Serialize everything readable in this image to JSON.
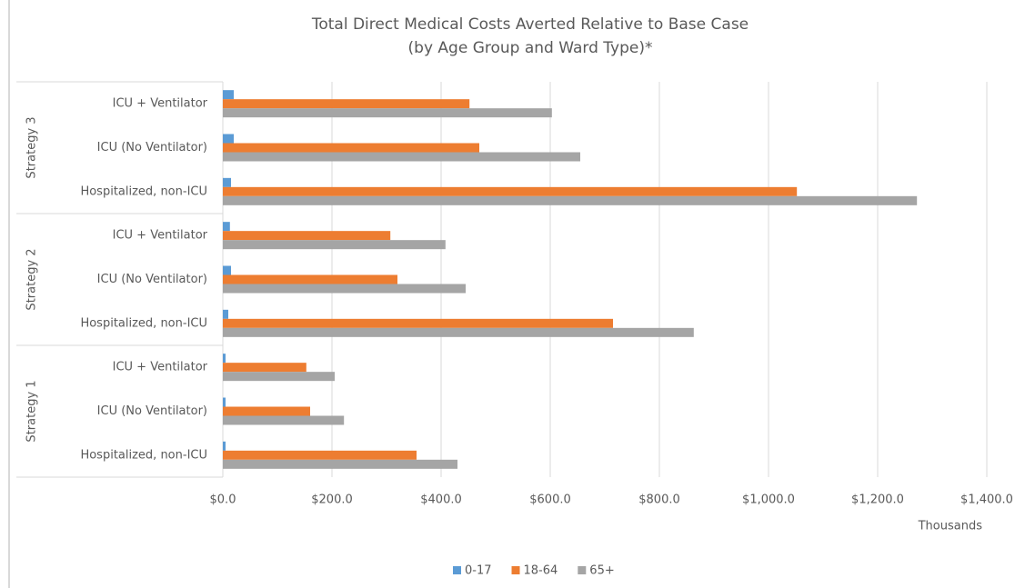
{
  "chart_data": {
    "type": "bar",
    "orientation": "horizontal",
    "title": [
      "Total Direct Medical Costs Averted Relative to Base Case",
      "(by Age Group and Ward Type)*"
    ],
    "x_label": "Thousands",
    "groups": [
      {
        "name": "Strategy 3",
        "categories": [
          "ICU + Ventilator",
          "ICU (No Ventilator)",
          "Hospitalized, non-ICU"
        ]
      },
      {
        "name": "Strategy 2",
        "categories": [
          "ICU + Ventilator",
          "ICU (No Ventilator)",
          "Hospitalized, non-ICU"
        ]
      },
      {
        "name": "Strategy 1",
        "categories": [
          "ICU + Ventilator",
          "ICU (No Ventilator)",
          "Hospitalized, non-ICU"
        ]
      }
    ],
    "series": [
      {
        "name": "0-17",
        "color": "#5b9bd5",
        "values": [
          20,
          20,
          15,
          13,
          15,
          10,
          5,
          5,
          5
        ]
      },
      {
        "name": "18-64",
        "color": "#ed7d31",
        "values": [
          452,
          470,
          1052,
          307,
          320,
          715,
          153,
          160,
          355
        ]
      },
      {
        "name": "65+",
        "color": "#a5a5a5",
        "values": [
          603,
          655,
          1272,
          408,
          445,
          863,
          205,
          222,
          430
        ]
      }
    ],
    "xlim": [
      0,
      1400
    ],
    "xticks": [
      {
        "value": 0,
        "label": "$0.0"
      },
      {
        "value": 200,
        "label": "$200.0"
      },
      {
        "value": 400,
        "label": "$400.0"
      },
      {
        "value": 600,
        "label": "$600.0"
      },
      {
        "value": 800,
        "label": "$800.0"
      },
      {
        "value": 1000,
        "label": "$1,000.0"
      },
      {
        "value": 1200,
        "label": "$1,200.0"
      },
      {
        "value": 1400,
        "label": "$1,400.0"
      }
    ],
    "grid": true,
    "legend": "bottom"
  }
}
